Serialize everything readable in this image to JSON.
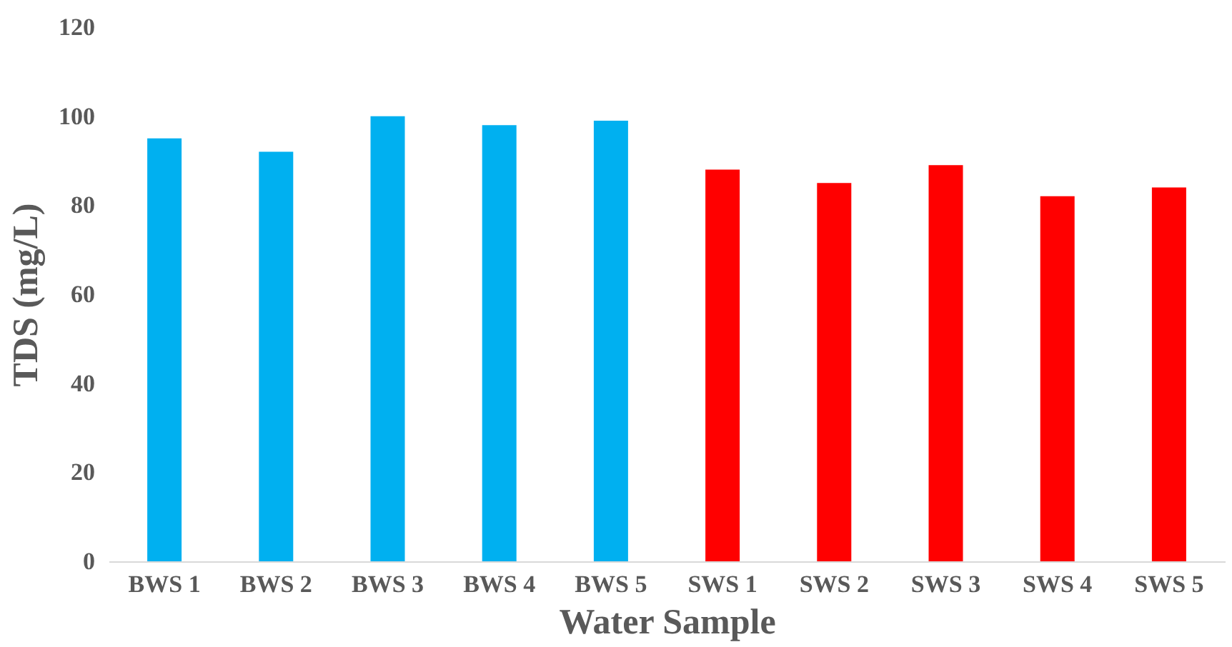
{
  "chart_data": {
    "type": "bar",
    "xlabel": "Water Sample",
    "ylabel": "TDS (mg/L)",
    "categories": [
      "BWS 1",
      "BWS 2",
      "BWS 3",
      "BWS 4",
      "BWS 5",
      "SWS 1",
      "SWS 2",
      "SWS 3",
      "SWS 4",
      "SWS 5"
    ],
    "values": [
      95,
      92,
      100,
      98,
      99,
      88,
      85,
      89,
      82,
      84
    ],
    "colors": [
      "#00b0f0",
      "#00b0f0",
      "#00b0f0",
      "#00b0f0",
      "#00b0f0",
      "#ff0000",
      "#ff0000",
      "#ff0000",
      "#ff0000",
      "#ff0000"
    ],
    "ylim": [
      0,
      120
    ],
    "yticks": [
      0,
      20,
      40,
      60,
      80,
      100,
      120
    ],
    "grid": false
  }
}
